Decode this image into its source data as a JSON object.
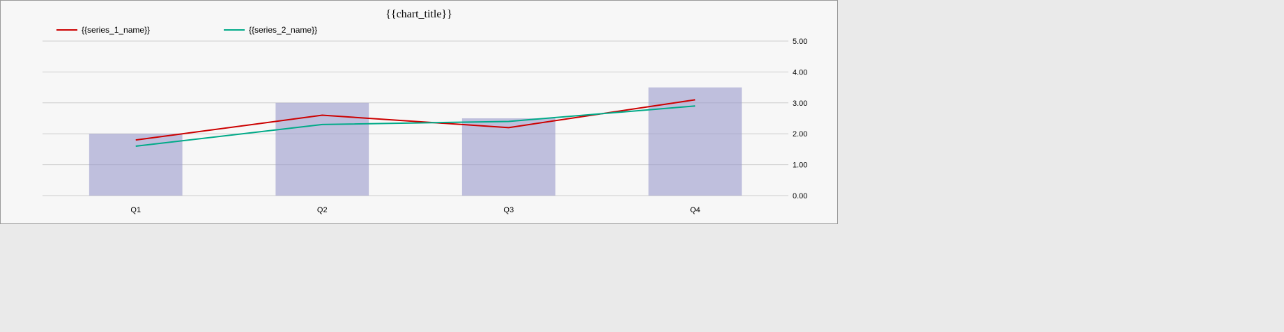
{
  "chart_data": {
    "type": "bar",
    "title": "{{chart_title}}",
    "categories": [
      "Q1",
      "Q2",
      "Q3",
      "Q4"
    ],
    "values": [
      2.0,
      3.0,
      2.5,
      3.5
    ],
    "series": [
      {
        "name": "{{series_1_name}}",
        "values": [
          1.8,
          2.6,
          2.2,
          3.1
        ]
      },
      {
        "name": "{{series_2_name}}",
        "values": [
          1.6,
          2.3,
          2.4,
          2.9
        ]
      }
    ],
    "ylim": [
      0,
      5
    ],
    "grid": true,
    "legend": "top",
    "colors": {
      "bars": "#9999cc",
      "series": [
        "#cc0000",
        "#00aa88"
      ]
    }
  }
}
